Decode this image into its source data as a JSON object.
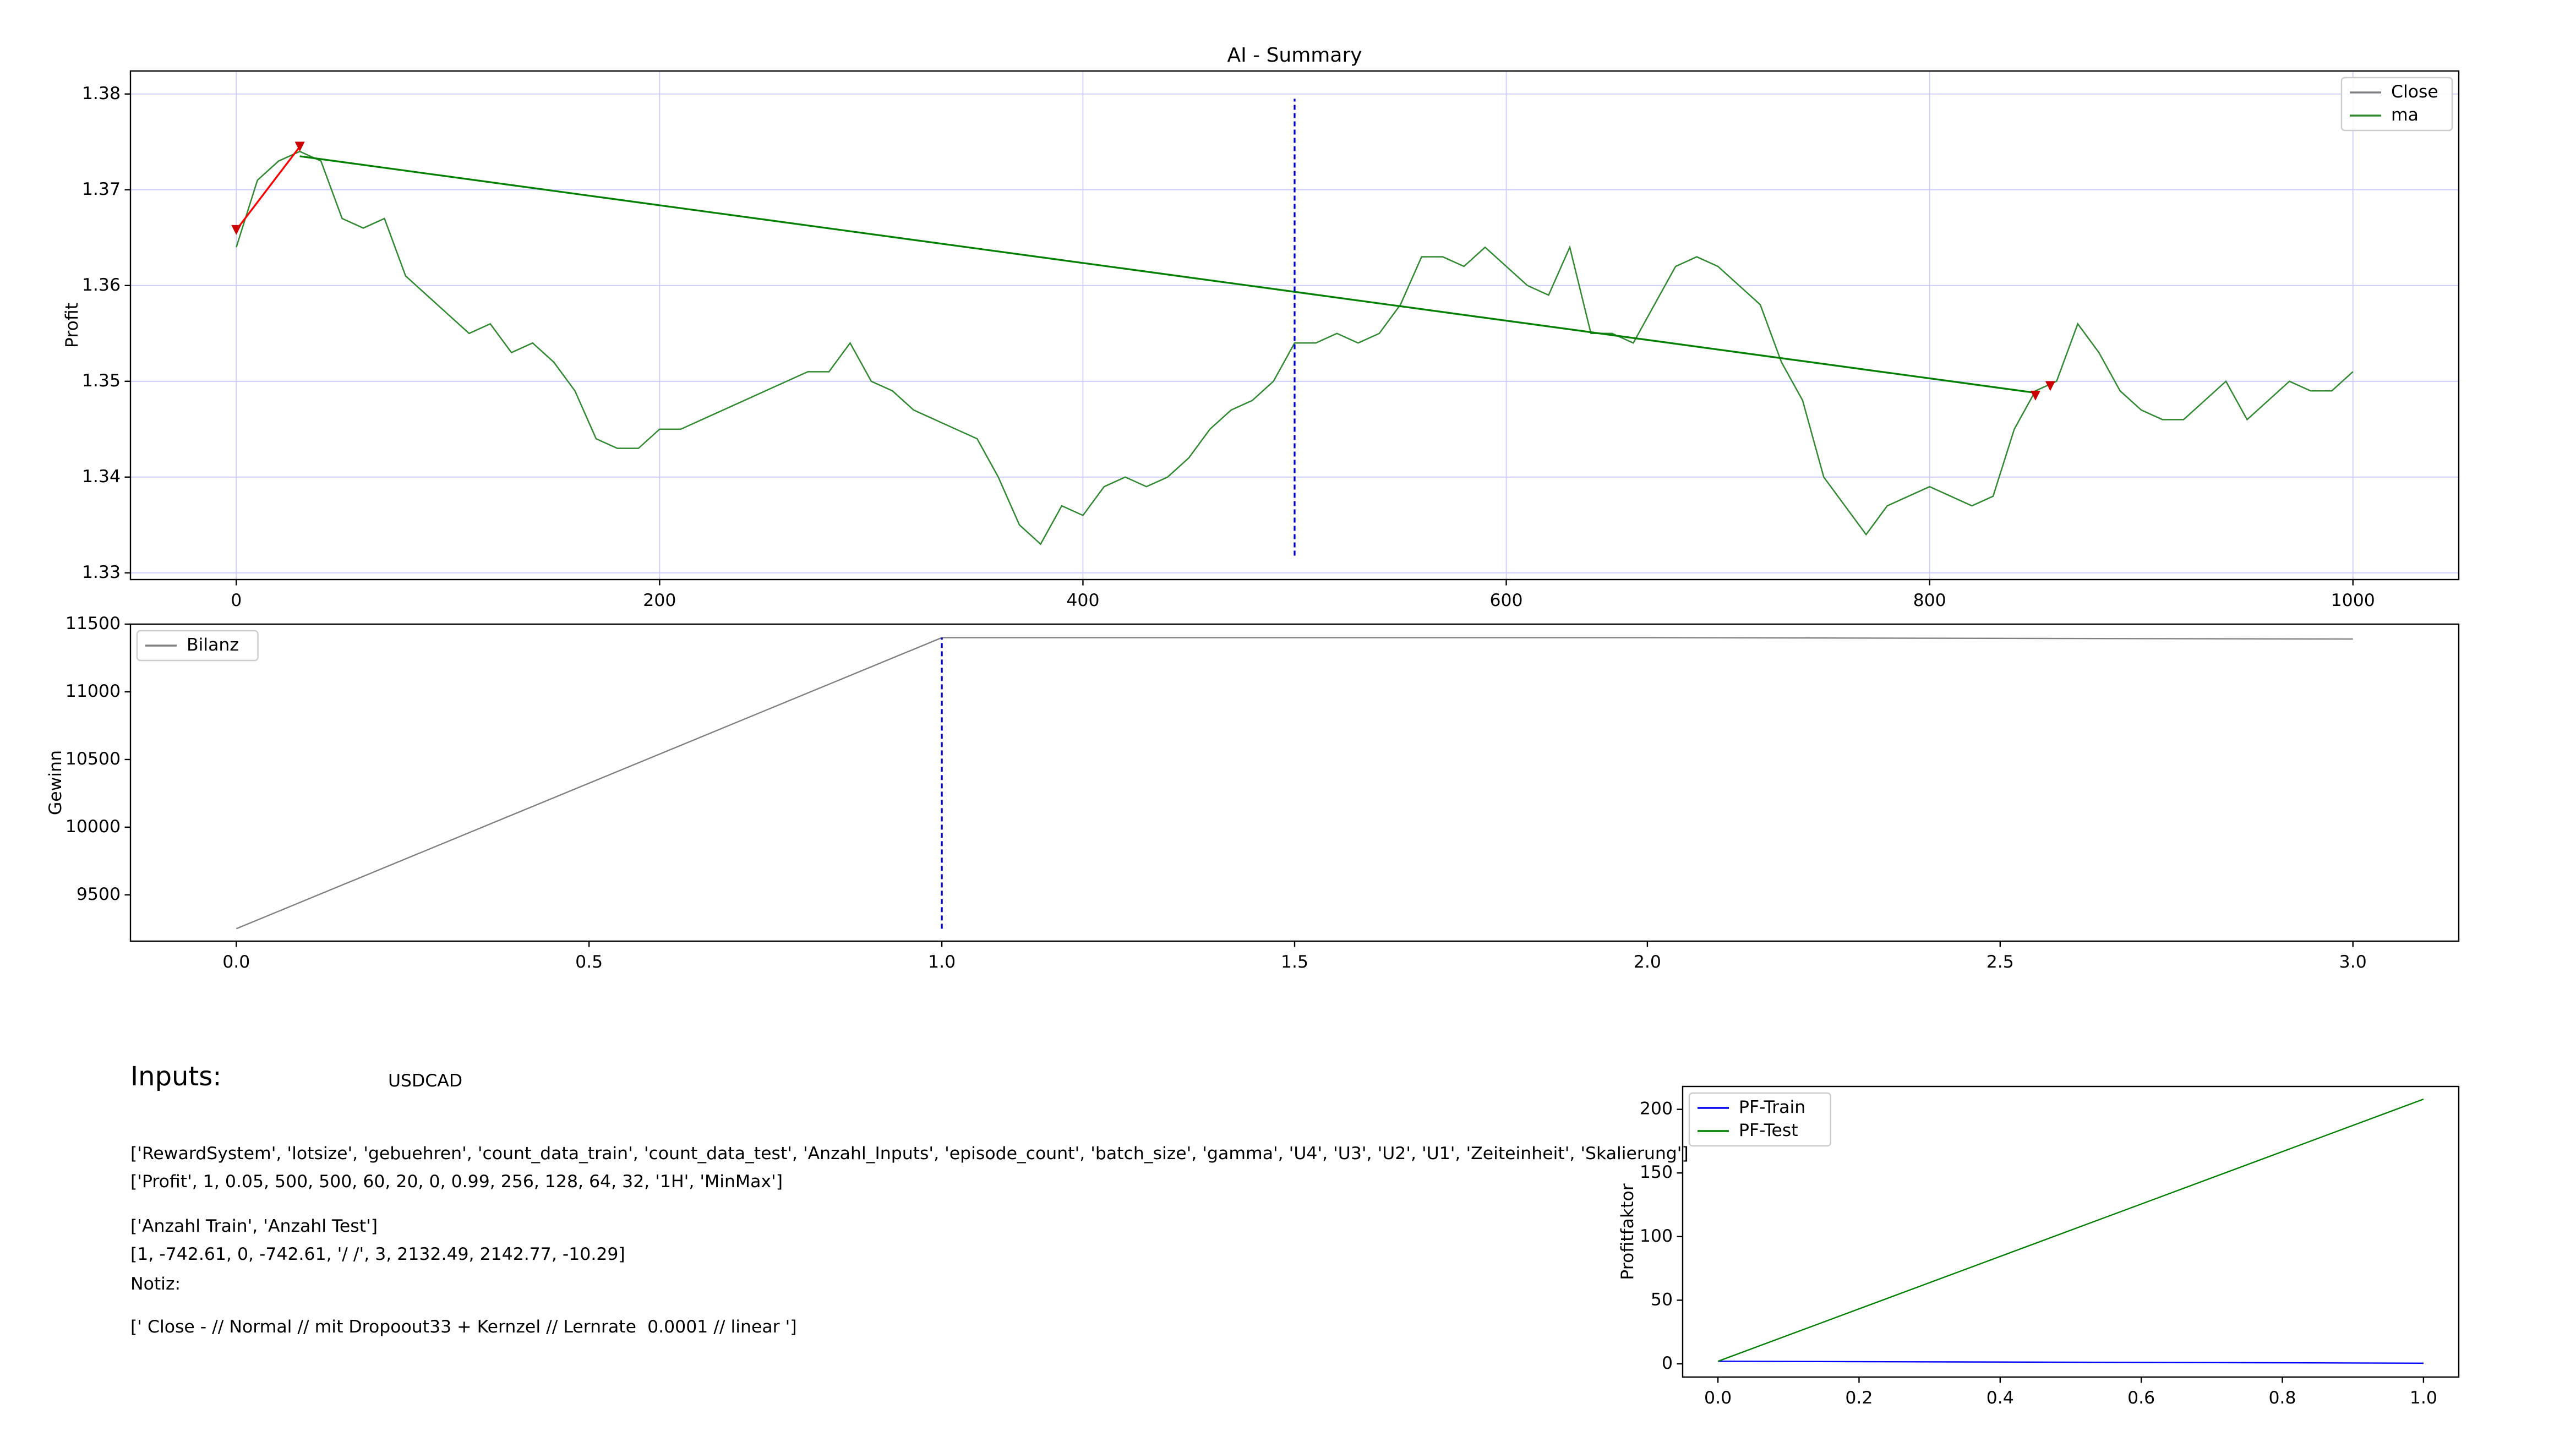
{
  "chart_data": [
    {
      "type": "line",
      "title": "AI - Summary",
      "ylabel": "Profit",
      "grid": true,
      "legend": "upper right",
      "xlim": [
        -50,
        1050
      ],
      "xticks": [
        0,
        200,
        400,
        600,
        800,
        1000
      ],
      "ylim": [
        1.3293,
        1.3824
      ],
      "yticks": [
        1.33,
        1.34,
        1.35,
        1.36,
        1.37,
        1.38
      ],
      "x": [
        0,
        10,
        20,
        30,
        40,
        50,
        60,
        70,
        80,
        90,
        100,
        110,
        120,
        130,
        140,
        150,
        160,
        170,
        180,
        190,
        200,
        210,
        220,
        230,
        240,
        250,
        260,
        270,
        280,
        290,
        300,
        310,
        320,
        330,
        340,
        350,
        360,
        370,
        380,
        390,
        400,
        410,
        420,
        430,
        440,
        450,
        460,
        470,
        480,
        490,
        500,
        510,
        520,
        530,
        540,
        550,
        560,
        570,
        580,
        590,
        600,
        610,
        620,
        630,
        640,
        650,
        660,
        670,
        680,
        690,
        700,
        710,
        720,
        730,
        740,
        750,
        760,
        770,
        780,
        790,
        800,
        810,
        820,
        830,
        840,
        850,
        860,
        870,
        880,
        890,
        900,
        910,
        920,
        930,
        940,
        950,
        960,
        970,
        980,
        990,
        1000
      ],
      "series": [
        {
          "name": "Close",
          "color": "#808080",
          "values": [
            1.364,
            1.371,
            1.373,
            1.374,
            1.373,
            1.367,
            1.366,
            1.367,
            1.361,
            1.359,
            1.357,
            1.355,
            1.356,
            1.353,
            1.354,
            1.352,
            1.349,
            1.344,
            1.343,
            1.343,
            1.345,
            1.345,
            1.346,
            1.347,
            1.348,
            1.349,
            1.35,
            1.351,
            1.351,
            1.354,
            1.35,
            1.349,
            1.347,
            1.346,
            1.345,
            1.344,
            1.34,
            1.335,
            1.333,
            1.337,
            1.336,
            1.339,
            1.34,
            1.339,
            1.34,
            1.342,
            1.345,
            1.347,
            1.348,
            1.35,
            1.354,
            1.354,
            1.355,
            1.354,
            1.355,
            1.358,
            1.363,
            1.363,
            1.362,
            1.364,
            1.362,
            1.36,
            1.359,
            1.364,
            1.355,
            1.355,
            1.354,
            1.358,
            1.362,
            1.363,
            1.362,
            1.36,
            1.358,
            1.352,
            1.348,
            1.34,
            1.337,
            1.334,
            1.337,
            1.338,
            1.339,
            1.338,
            1.337,
            1.338,
            1.345,
            1.349,
            1.35,
            1.356,
            1.353,
            1.349,
            1.347,
            1.346,
            1.346,
            1.348,
            1.35,
            1.346,
            1.348,
            1.35,
            1.349,
            1.349,
            1.351
          ]
        },
        {
          "name": "ma",
          "color": "#2e8b2e",
          "values": [
            1.364,
            1.371,
            1.373,
            1.374,
            1.373,
            1.367,
            1.366,
            1.367,
            1.361,
            1.359,
            1.357,
            1.355,
            1.356,
            1.353,
            1.354,
            1.352,
            1.349,
            1.344,
            1.343,
            1.343,
            1.345,
            1.345,
            1.346,
            1.347,
            1.348,
            1.349,
            1.35,
            1.351,
            1.351,
            1.354,
            1.35,
            1.349,
            1.347,
            1.346,
            1.345,
            1.344,
            1.34,
            1.335,
            1.333,
            1.337,
            1.336,
            1.339,
            1.34,
            1.339,
            1.34,
            1.342,
            1.345,
            1.347,
            1.348,
            1.35,
            1.354,
            1.354,
            1.355,
            1.354,
            1.355,
            1.358,
            1.363,
            1.363,
            1.362,
            1.364,
            1.362,
            1.36,
            1.359,
            1.364,
            1.355,
            1.355,
            1.354,
            1.358,
            1.362,
            1.363,
            1.362,
            1.36,
            1.358,
            1.352,
            1.348,
            1.34,
            1.337,
            1.334,
            1.337,
            1.338,
            1.339,
            1.338,
            1.337,
            1.338,
            1.345,
            1.349,
            1.35,
            1.356,
            1.353,
            1.349,
            1.347,
            1.346,
            1.346,
            1.348,
            1.35,
            1.346,
            1.348,
            1.35,
            1.349,
            1.349,
            1.351
          ]
        }
      ],
      "trade_lines": [
        {
          "color": "#008000",
          "x": [
            30,
            850
          ],
          "values": [
            1.3735,
            1.3488
          ]
        },
        {
          "color": "#ff0000",
          "x": [
            0,
            30
          ],
          "values": [
            1.3658,
            1.3745
          ]
        }
      ],
      "markers": {
        "color": "#cc0000",
        "x": [
          0,
          30,
          850,
          857
        ],
        "values": [
          1.3658,
          1.3745,
          1.3485,
          1.3495
        ]
      },
      "vline": {
        "color": "#0000cc",
        "x": 500,
        "values": [
          1.3318,
          1.3795
        ]
      }
    },
    {
      "type": "line",
      "ylabel": "Gewinn",
      "grid": false,
      "legend": "upper left",
      "xlim": [
        -0.15,
        3.15
      ],
      "xticks": [
        {
          "value": 0,
          "label": "0.0"
        },
        0.5,
        {
          "value": 1,
          "label": "1.0"
        },
        1.5,
        {
          "value": 2,
          "label": "2.0"
        },
        2.5,
        {
          "value": 3,
          "label": "3.0"
        }
      ],
      "ylim": [
        9158,
        11500
      ],
      "yticks": [
        9500,
        10000,
        10500,
        11000,
        11500
      ],
      "x": [
        0,
        1,
        2,
        3
      ],
      "series": [
        {
          "name": "Bilanz",
          "color": "#808080",
          "values": [
            9250,
            11400,
            11400,
            11390
          ]
        }
      ],
      "vline": {
        "color": "#0000cc",
        "x": 1,
        "values": [
          9250,
          11400
        ]
      }
    },
    {
      "type": "line",
      "ylabel": "Profitfaktor",
      "grid": false,
      "legend": "upper left",
      "xlim": [
        -0.05,
        1.05
      ],
      "xticks": [
        {
          "value": 0,
          "label": "0.0"
        },
        0.2,
        0.4,
        0.6,
        0.8,
        {
          "value": 1,
          "label": "1.0"
        }
      ],
      "ylim": [
        -10.4,
        218
      ],
      "yticks": [
        0,
        50,
        100,
        150,
        200
      ],
      "x": [
        0,
        1
      ],
      "series": [
        {
          "name": "PF-Train",
          "color": "#0000ff",
          "values": [
            2,
            0.5
          ]
        },
        {
          "name": "PF-Test",
          "color": "#008000",
          "values": [
            2,
            208
          ]
        }
      ]
    }
  ],
  "inputs_panel": {
    "heading": "Inputs:",
    "symbol": "USDCAD",
    "lines": [
      "['RewardSystem', 'lotsize', 'gebuehren', 'count_data_train', 'count_data_test', 'Anzahl_Inputs', 'episode_count', 'batch_size', 'gamma', 'U4', 'U3', 'U2', 'U1', 'Zeiteinheit', 'Skalierung']",
      "['Profit', 1, 0.05, 500, 500, 60, 20, 0, 0.99, 256, 128, 64, 32, '1H', 'MinMax']",
      "['Anzahl Train', 'Anzahl Test']",
      "[1, -742.61, 0, -742.61, '/ /', 3, 2132.49, 2142.77, -10.29]",
      "Notiz:",
      "[' Close - // Normal // mit Dropoout33 + Kernzel // Lernrate  0.0001 // linear ']"
    ]
  }
}
